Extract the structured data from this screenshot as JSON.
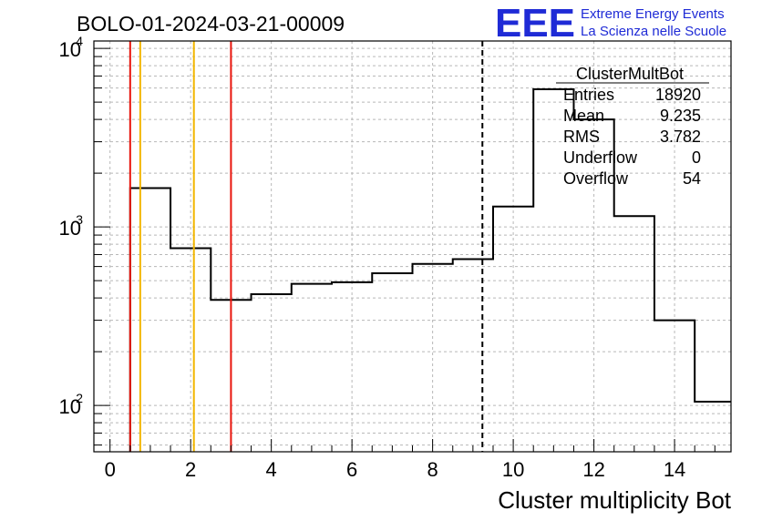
{
  "header": {
    "run_title": "BOLO-01-2024-03-21-00009",
    "logo_text": "EEE",
    "logo_line1": "Extreme Energy Events",
    "logo_line2": "La Scienza nelle Scuole",
    "logo_color": "#1f2bd6"
  },
  "stats": {
    "title": "ClusterMultBot",
    "rows": [
      {
        "label": "Entries",
        "value": "18920"
      },
      {
        "label": "Mean",
        "value": "9.235"
      },
      {
        "label": "RMS",
        "value": "3.782"
      },
      {
        "label": "Underflow",
        "value": "0"
      },
      {
        "label": "Overflow",
        "value": "54"
      }
    ]
  },
  "chart_data": {
    "type": "bar",
    "style": "step-histogram",
    "title": "",
    "xlabel": "Cluster multiplicity Bot",
    "ylabel": "",
    "xlim": [
      -0.4,
      15.4
    ],
    "ylim": [
      55,
      11000
    ],
    "y_scale": "log",
    "grid": true,
    "x_ticks": [
      0,
      2,
      4,
      6,
      8,
      10,
      12,
      14
    ],
    "y_ticks": [
      {
        "value": 100,
        "label": "10",
        "exp": "2"
      },
      {
        "value": 1000,
        "label": "10",
        "exp": "3"
      },
      {
        "value": 10000,
        "label": "10",
        "exp": "4"
      }
    ],
    "bin_edges": [
      0.5,
      1.5,
      2.5,
      3.5,
      4.5,
      5.5,
      6.5,
      7.5,
      8.5,
      9.5,
      10.5,
      11.5,
      12.5,
      13.5,
      14.5,
      15.4
    ],
    "values": [
      1650,
      760,
      390,
      420,
      480,
      490,
      550,
      620,
      660,
      1300,
      5900,
      4000,
      1150,
      300,
      105
    ],
    "vertical_lines": [
      {
        "x": 0.5,
        "color": "#e8140c",
        "style": "solid"
      },
      {
        "x": 0.75,
        "color": "#f2b600",
        "style": "solid"
      },
      {
        "x": 2.08,
        "color": "#f2b600",
        "style": "solid"
      },
      {
        "x": 3.0,
        "color": "#e8140c",
        "style": "solid"
      },
      {
        "x": 9.235,
        "color": "#000000",
        "style": "dashed"
      }
    ]
  }
}
